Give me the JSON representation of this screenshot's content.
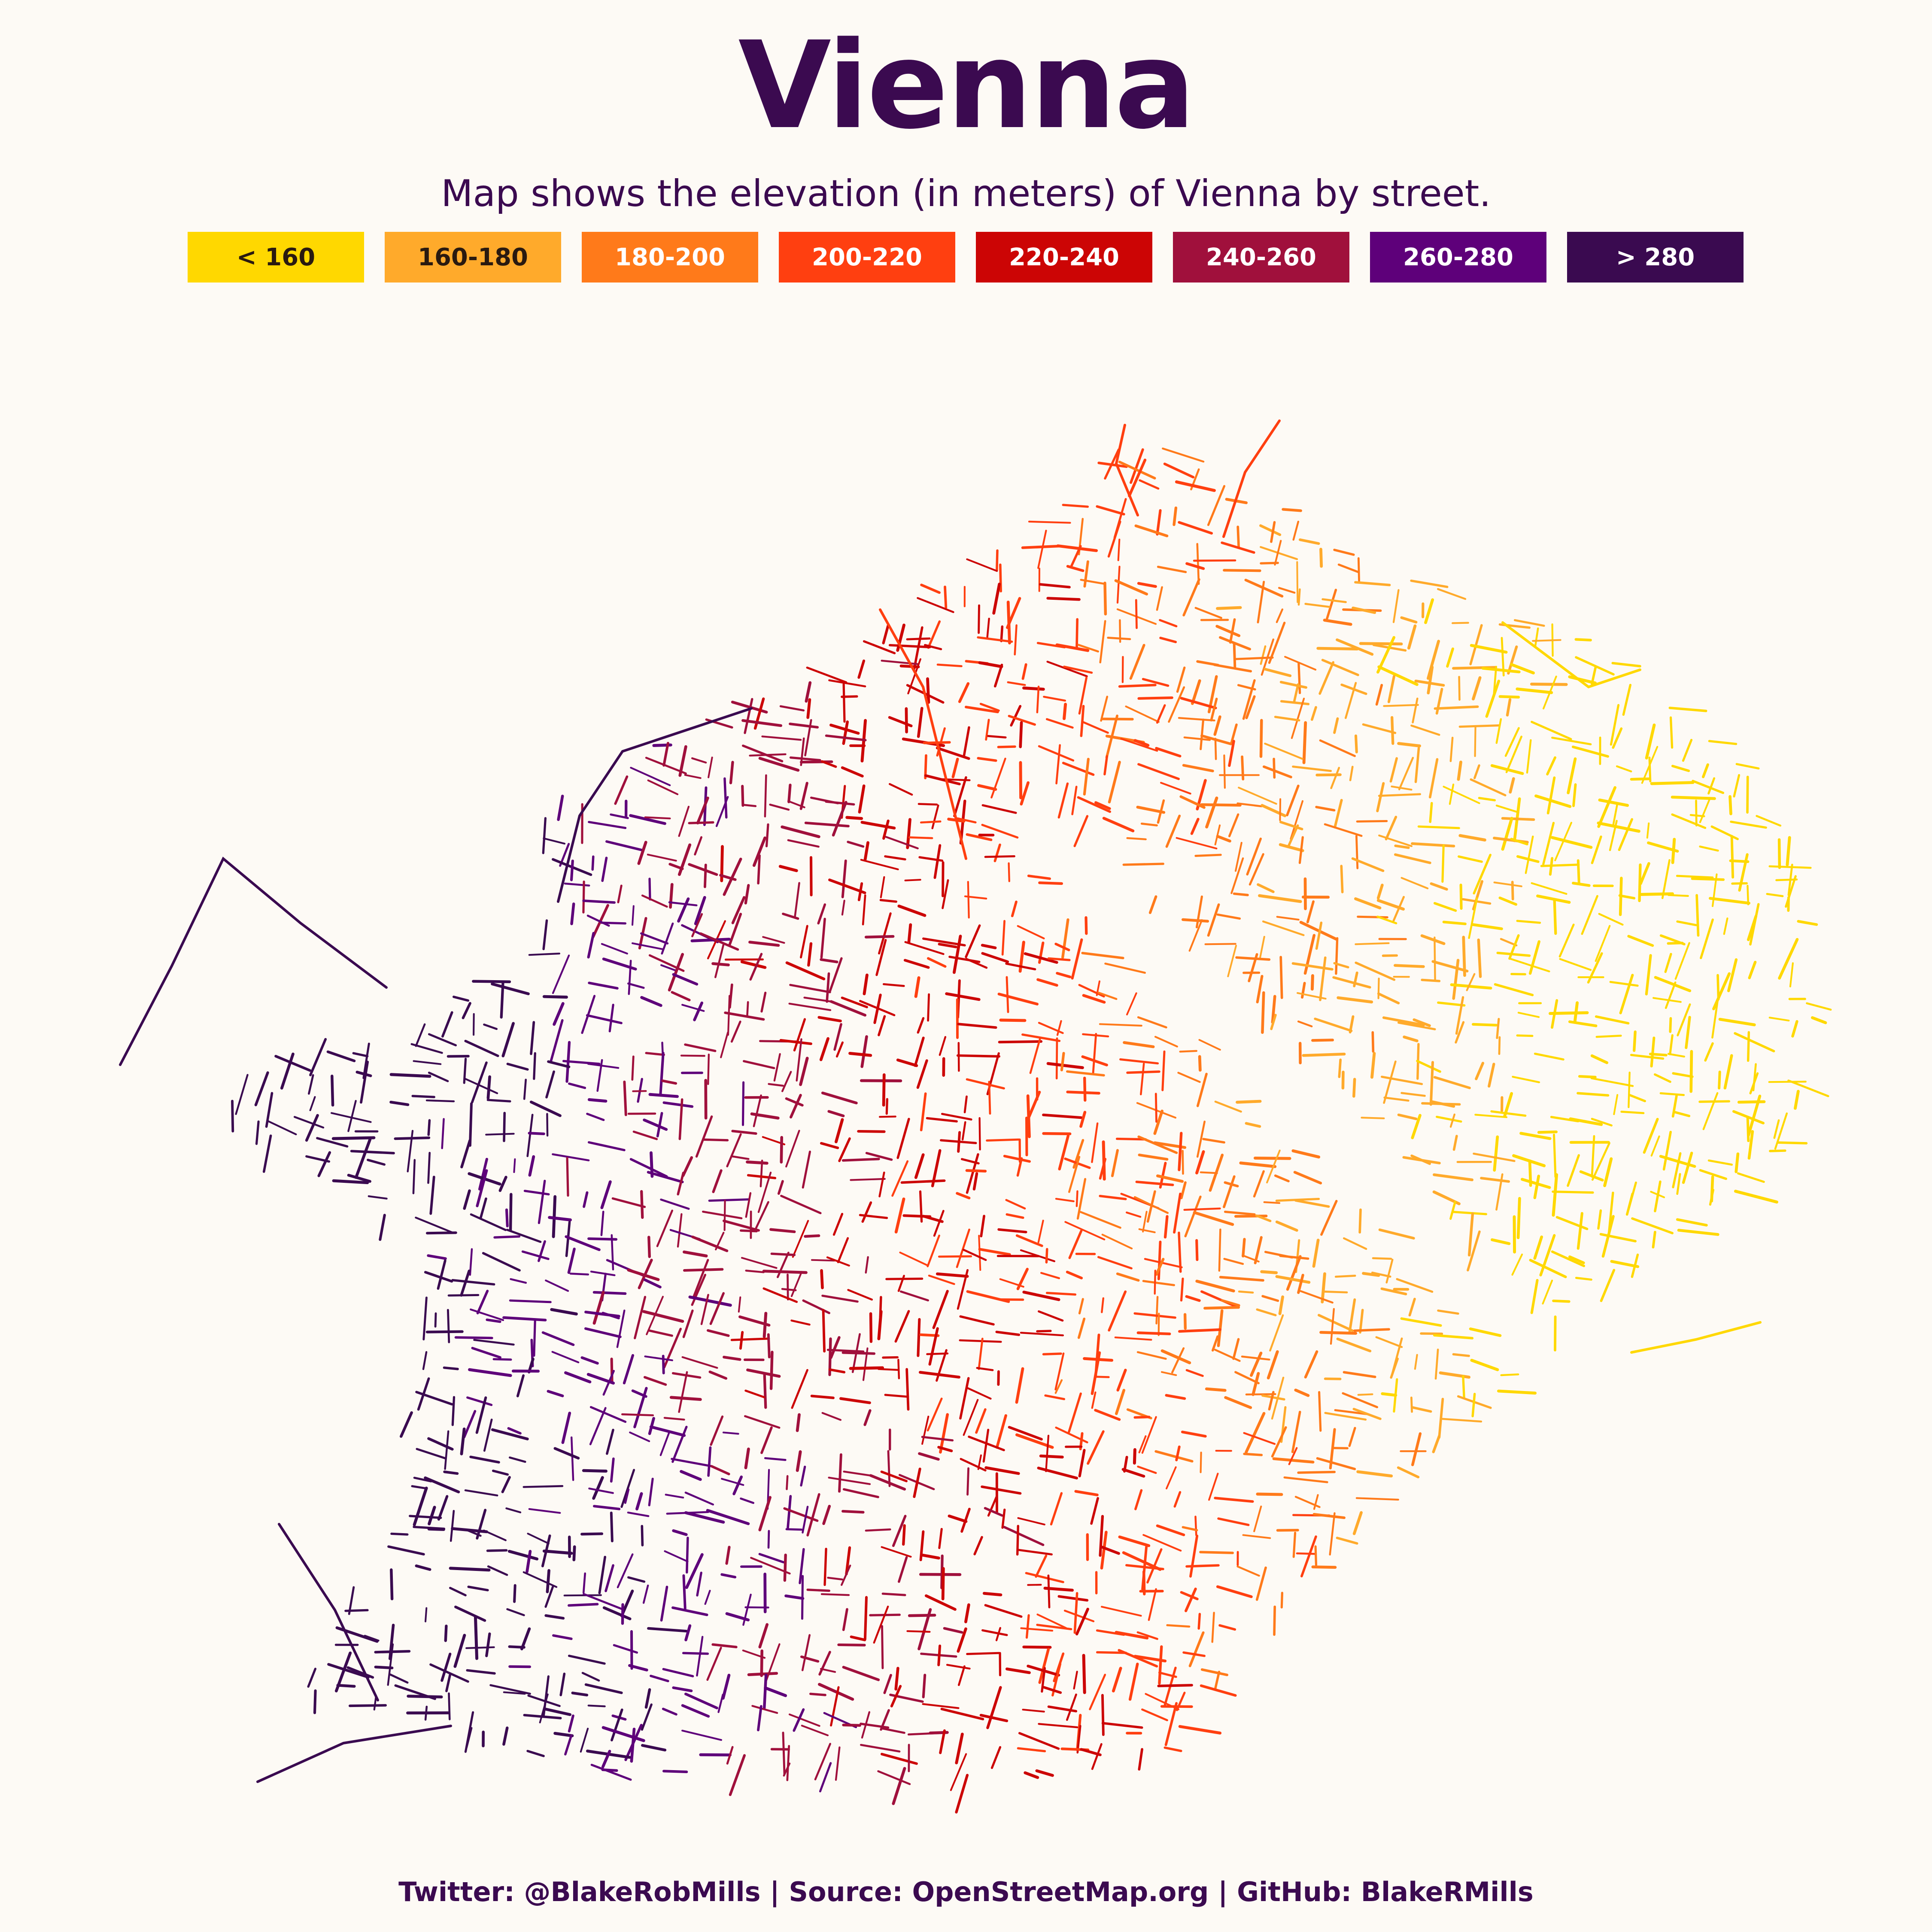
{
  "title": "Vienna",
  "subtitle": "Map shows the elevation (in meters) of Vienna by street.",
  "legend": [
    {
      "label": "< 160",
      "color": "#ffd800",
      "text_color": "#2a1a10"
    },
    {
      "label": "160-180",
      "color": "#ffaa2b",
      "text_color": "#2a1a10"
    },
    {
      "label": "180-200",
      "color": "#ff7a1a",
      "text_color": "#ffffff"
    },
    {
      "label": "200-220",
      "color": "#ff3f10",
      "text_color": "#ffffff"
    },
    {
      "label": "220-240",
      "color": "#cc0505",
      "text_color": "#ffffff"
    },
    {
      "label": "240-260",
      "color": "#a0103c",
      "text_color": "#ffffff"
    },
    {
      "label": "260-280",
      "color": "#5e007a",
      "text_color": "#ffffff"
    },
    {
      "label": "> 280",
      "color": "#3a0a50",
      "text_color": "#ffffff"
    }
  ],
  "footer": "Twitter: @BlakeRobMills | Source: OpenStreetMap.org | GitHub: BlakeRMills"
}
